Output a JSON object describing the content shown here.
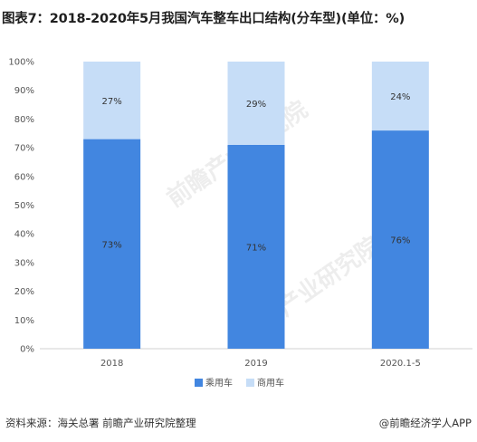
{
  "title": "图表7：2018-2020年5月我国汽车整车出口结构(分车型)(单位：%)",
  "chart_data": {
    "type": "bar",
    "stacked": true,
    "categories": [
      "2018",
      "2019",
      "2020.1-5"
    ],
    "series": [
      {
        "name": "乘用车",
        "values": [
          73,
          71,
          76
        ],
        "labels": [
          "73%",
          "71%",
          "76%"
        ],
        "color": "#4286e0"
      },
      {
        "name": "商用车",
        "values": [
          27,
          29,
          24
        ],
        "labels": [
          "27%",
          "29%",
          "24%"
        ],
        "color": "#c6ddf7"
      }
    ],
    "ylim": [
      0,
      100
    ],
    "yticks": [
      "0%",
      "10%",
      "20%",
      "30%",
      "40%",
      "50%",
      "60%",
      "70%",
      "80%",
      "90%",
      "100%"
    ],
    "legend_position": "bottom",
    "grid": false
  },
  "watermark": "前瞻产业研究院",
  "footer": {
    "source": "资料来源：海关总署 前瞻产业研究院整理",
    "brand": "@前瞻经济学人APP"
  }
}
